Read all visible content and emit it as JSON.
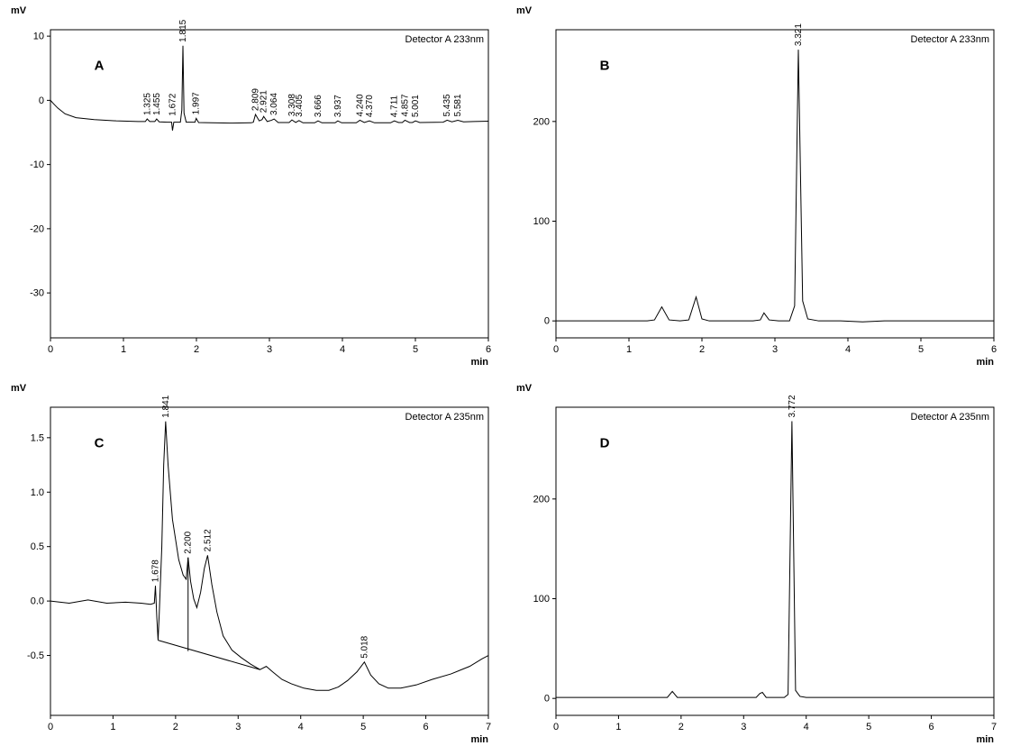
{
  "chart_data": [
    {
      "type": "line",
      "panel_label": "A",
      "title": "Detector A 233nm",
      "xlabel": "min",
      "ylabel": "mV",
      "xlim": [
        0,
        6
      ],
      "ylim": [
        -37,
        11
      ],
      "grid": false,
      "xticks": [
        {
          "v": 0,
          "label": "0"
        },
        {
          "v": 1,
          "label": "1"
        },
        {
          "v": 2,
          "label": "2"
        },
        {
          "v": 3,
          "label": "3"
        },
        {
          "v": 4,
          "label": "4"
        },
        {
          "v": 5,
          "label": "5"
        },
        {
          "v": 6,
          "label": "6"
        }
      ],
      "yticks": [
        {
          "v": 10,
          "label": "10"
        },
        {
          "v": 0,
          "label": "0"
        },
        {
          "v": -10,
          "label": "-10"
        },
        {
          "v": -20,
          "label": "-20"
        },
        {
          "v": -30,
          "label": "-30"
        }
      ],
      "series": [
        {
          "name": "signal",
          "x": [
            0,
            0.04,
            0.1,
            0.2,
            0.35,
            0.6,
            0.9,
            1.2,
            1.3,
            1.325,
            1.36,
            1.43,
            1.455,
            1.49,
            1.6,
            1.66,
            1.672,
            1.69,
            1.78,
            1.8,
            1.815,
            1.83,
            1.86,
            1.95,
            1.98,
            1.997,
            2.03,
            2.2,
            2.5,
            2.75,
            2.78,
            2.809,
            2.86,
            2.9,
            2.921,
            2.97,
            3.03,
            3.064,
            3.12,
            3.27,
            3.308,
            3.36,
            3.405,
            3.46,
            3.62,
            3.666,
            3.72,
            3.9,
            3.937,
            3.99,
            4.19,
            4.24,
            4.3,
            4.37,
            4.44,
            4.66,
            4.711,
            4.77,
            4.82,
            4.857,
            4.92,
            4.96,
            5.001,
            5.06,
            5.38,
            5.435,
            5.5,
            5.581,
            5.66,
            5.8,
            6.0
          ],
          "y": [
            0,
            -0.5,
            -1.2,
            -2.1,
            -2.7,
            -3.0,
            -3.2,
            -3.3,
            -3.3,
            -2.9,
            -3.3,
            -3.3,
            -2.9,
            -3.35,
            -3.4,
            -3.4,
            -4.7,
            -3.4,
            -3.4,
            -1.5,
            8.5,
            -2.0,
            -3.4,
            -3.4,
            -3.4,
            -2.8,
            -3.45,
            -3.5,
            -3.55,
            -3.5,
            -3.4,
            -2.2,
            -3.2,
            -3.0,
            -2.5,
            -3.3,
            -3.1,
            -2.9,
            -3.45,
            -3.45,
            -3.05,
            -3.45,
            -3.15,
            -3.5,
            -3.5,
            -3.2,
            -3.5,
            -3.5,
            -3.2,
            -3.5,
            -3.5,
            -3.1,
            -3.45,
            -3.2,
            -3.5,
            -3.5,
            -3.2,
            -3.45,
            -3.45,
            -3.1,
            -3.45,
            -3.45,
            -3.2,
            -3.45,
            -3.4,
            -3.1,
            -3.35,
            -3.1,
            -3.35,
            -3.3,
            -3.25
          ]
        }
      ],
      "peaks": [
        {
          "t": 1.325,
          "y": -2.9,
          "label": "1.325"
        },
        {
          "t": 1.455,
          "y": -2.9,
          "label": "1.455"
        },
        {
          "t": 1.672,
          "y": -3.0,
          "label": "1.672"
        },
        {
          "t": 1.815,
          "y": 8.5,
          "label": "1.815"
        },
        {
          "t": 1.997,
          "y": -2.8,
          "label": "1.997"
        },
        {
          "t": 2.809,
          "y": -2.2,
          "label": "2.809"
        },
        {
          "t": 2.921,
          "y": -2.5,
          "label": "2.921"
        },
        {
          "t": 3.064,
          "y": -2.9,
          "label": "3.064"
        },
        {
          "t": 3.308,
          "y": -3.05,
          "label": "3.308"
        },
        {
          "t": 3.405,
          "y": -3.15,
          "label": "3.405"
        },
        {
          "t": 3.666,
          "y": -3.2,
          "label": "3.666"
        },
        {
          "t": 3.937,
          "y": -3.2,
          "label": "3.937"
        },
        {
          "t": 4.24,
          "y": -3.1,
          "label": "4.240"
        },
        {
          "t": 4.37,
          "y": -3.2,
          "label": "4.370"
        },
        {
          "t": 4.711,
          "y": -3.2,
          "label": "4.711"
        },
        {
          "t": 4.857,
          "y": -3.1,
          "label": "4.857"
        },
        {
          "t": 5.001,
          "y": -3.2,
          "label": "5.001"
        },
        {
          "t": 5.435,
          "y": -3.1,
          "label": "5.435"
        },
        {
          "t": 5.581,
          "y": -3.1,
          "label": "5.581"
        }
      ]
    },
    {
      "type": "line",
      "panel_label": "B",
      "title": "Detector A 233nm",
      "xlabel": "min",
      "ylabel": "mV",
      "xlim": [
        0,
        6
      ],
      "ylim": [
        -17,
        292
      ],
      "grid": false,
      "xticks": [
        {
          "v": 0,
          "label": "0"
        },
        {
          "v": 1,
          "label": "1"
        },
        {
          "v": 2,
          "label": "2"
        },
        {
          "v": 3,
          "label": "3"
        },
        {
          "v": 4,
          "label": "4"
        },
        {
          "v": 5,
          "label": "5"
        },
        {
          "v": 6,
          "label": "6"
        }
      ],
      "yticks": [
        {
          "v": 200,
          "label": "200"
        },
        {
          "v": 100,
          "label": "100"
        },
        {
          "v": 0,
          "label": "0"
        }
      ],
      "series": [
        {
          "name": "signal",
          "x": [
            0,
            0.4,
            0.9,
            1.25,
            1.35,
            1.45,
            1.55,
            1.7,
            1.82,
            1.92,
            2.0,
            2.1,
            2.4,
            2.7,
            2.8,
            2.85,
            2.92,
            3.05,
            3.2,
            3.27,
            3.321,
            3.38,
            3.45,
            3.6,
            3.9,
            4.2,
            4.5,
            5.0,
            5.5,
            6.0
          ],
          "y": [
            0,
            0,
            0,
            0,
            1,
            14,
            1,
            0,
            1,
            24,
            2,
            0,
            0,
            0,
            1,
            8,
            1,
            0,
            0,
            15,
            272,
            20,
            2,
            0,
            0,
            -1,
            0,
            0,
            0,
            0
          ]
        }
      ],
      "peaks": [
        {
          "t": 3.321,
          "y": 272,
          "label": "3.321"
        }
      ]
    },
    {
      "type": "line",
      "panel_label": "C",
      "title": "Detector A 235nm",
      "xlabel": "min",
      "ylabel": "mV",
      "xlim": [
        0,
        7
      ],
      "ylim": [
        -1.05,
        1.78
      ],
      "grid": false,
      "xticks": [
        {
          "v": 0,
          "label": "0"
        },
        {
          "v": 1,
          "label": "1"
        },
        {
          "v": 2,
          "label": "2"
        },
        {
          "v": 3,
          "label": "3"
        },
        {
          "v": 4,
          "label": "4"
        },
        {
          "v": 5,
          "label": "5"
        },
        {
          "v": 6,
          "label": "6"
        },
        {
          "v": 7,
          "label": "7"
        }
      ],
      "yticks": [
        {
          "v": 1.5,
          "label": "1.5"
        },
        {
          "v": 1.0,
          "label": "1.0"
        },
        {
          "v": 0.5,
          "label": "0.5"
        },
        {
          "v": 0.0,
          "label": "0.0"
        },
        {
          "v": -0.5,
          "label": "-0.5"
        }
      ],
      "series": [
        {
          "name": "signal",
          "x": [
            0,
            0.3,
            0.6,
            0.9,
            1.2,
            1.45,
            1.6,
            1.66,
            1.678,
            1.7,
            1.72,
            1.74,
            1.78,
            1.81,
            1.841,
            1.88,
            1.95,
            2.05,
            2.12,
            2.17,
            2.2,
            2.24,
            2.29,
            2.34,
            2.4,
            2.46,
            2.512,
            2.58,
            2.66,
            2.76,
            2.9,
            3.05,
            3.2,
            3.35,
            3.45,
            3.55,
            3.7,
            3.85,
            4.05,
            4.25,
            4.45,
            4.6,
            4.75,
            4.9,
            5.018,
            5.12,
            5.25,
            5.4,
            5.6,
            5.85,
            6.1,
            6.4,
            6.7,
            6.9,
            7.0
          ],
          "y": [
            0,
            -0.02,
            0.01,
            -0.02,
            -0.01,
            -0.02,
            -0.03,
            -0.02,
            0.14,
            -0.15,
            -0.36,
            -0.1,
            0.5,
            1.25,
            1.65,
            1.25,
            0.75,
            0.38,
            0.24,
            0.2,
            0.4,
            0.18,
            0.02,
            -0.06,
            0.08,
            0.3,
            0.42,
            0.15,
            -0.1,
            -0.32,
            -0.45,
            -0.52,
            -0.58,
            -0.63,
            -0.6,
            -0.65,
            -0.72,
            -0.76,
            -0.8,
            -0.82,
            -0.82,
            -0.79,
            -0.73,
            -0.65,
            -0.56,
            -0.68,
            -0.76,
            -0.8,
            -0.8,
            -0.77,
            -0.72,
            -0.67,
            -0.6,
            -0.53,
            -0.5
          ]
        },
        {
          "name": "integration-baseline",
          "x": [
            1.72,
            3.35
          ],
          "y": [
            -0.36,
            -0.63
          ]
        },
        {
          "name": "drop-line",
          "x": [
            2.2,
            2.2
          ],
          "y": [
            0.4,
            -0.46
          ]
        }
      ],
      "peaks": [
        {
          "t": 1.678,
          "y": 0.14,
          "label": "1.678"
        },
        {
          "t": 1.841,
          "y": 1.65,
          "label": "1.841"
        },
        {
          "t": 2.2,
          "y": 0.4,
          "label": "2.200"
        },
        {
          "t": 2.512,
          "y": 0.42,
          "label": "2.512"
        },
        {
          "t": 5.018,
          "y": -0.56,
          "label": "5.018"
        }
      ]
    },
    {
      "type": "line",
      "panel_label": "D",
      "title": "Detector A 235nm",
      "xlabel": "min",
      "ylabel": "mV",
      "xlim": [
        0,
        7
      ],
      "ylim": [
        -17,
        292
      ],
      "grid": false,
      "xticks": [
        {
          "v": 0,
          "label": "0"
        },
        {
          "v": 1,
          "label": "1"
        },
        {
          "v": 2,
          "label": "2"
        },
        {
          "v": 3,
          "label": "3"
        },
        {
          "v": 4,
          "label": "4"
        },
        {
          "v": 5,
          "label": "5"
        },
        {
          "v": 6,
          "label": "6"
        },
        {
          "v": 7,
          "label": "7"
        }
      ],
      "yticks": [
        {
          "v": 200,
          "label": "200"
        },
        {
          "v": 100,
          "label": "100"
        },
        {
          "v": 0,
          "label": "0"
        }
      ],
      "series": [
        {
          "name": "signal",
          "x": [
            0,
            0.5,
            1.0,
            1.5,
            1.78,
            1.86,
            1.94,
            2.2,
            2.6,
            3.0,
            3.2,
            3.26,
            3.3,
            3.36,
            3.5,
            3.65,
            3.71,
            3.772,
            3.83,
            3.9,
            4.0,
            4.3,
            4.8,
            5.3,
            5.8,
            6.3,
            6.8,
            7.0
          ],
          "y": [
            1,
            1,
            1,
            1,
            1,
            7,
            1,
            1,
            1,
            1,
            1,
            5,
            6,
            1,
            1,
            1,
            4,
            278,
            8,
            2,
            1,
            1,
            1,
            1,
            1,
            1,
            1,
            1
          ]
        }
      ],
      "peaks": [
        {
          "t": 3.772,
          "y": 278,
          "label": "3.772"
        }
      ]
    }
  ]
}
